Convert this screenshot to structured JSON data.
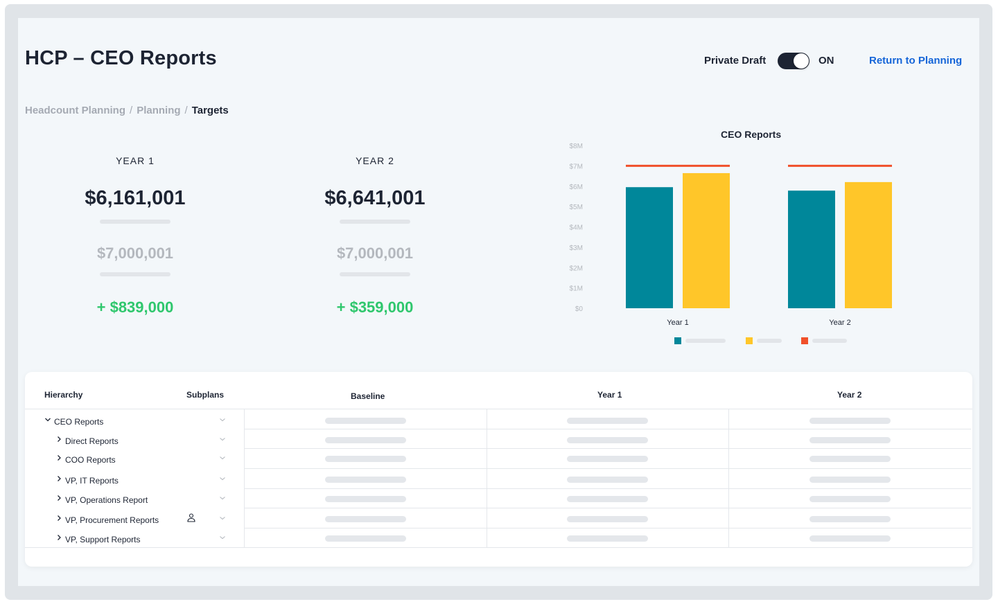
{
  "header": {
    "title": "HCP – CEO Reports",
    "private_draft_label": "Private Draft",
    "toggle_state": "ON",
    "return_link": "Return to Planning"
  },
  "breadcrumb": {
    "items": [
      "Headcount Planning",
      "Planning"
    ],
    "separator": "/",
    "current": "Targets"
  },
  "summary": [
    {
      "title": "YEAR 1",
      "value": "$6,161,001",
      "target": "$7,000,001",
      "diff": "+ $839,000"
    },
    {
      "title": "YEAR 2",
      "value": "$6,641,001",
      "target": "$7,000,001",
      "diff": "+ $359,000"
    }
  ],
  "colors": {
    "teal": "#00879a",
    "yellow": "#ffc629",
    "red": "#f0502a",
    "green": "#2fc76d",
    "link": "#1565d8"
  },
  "chart_data": {
    "type": "bar",
    "title": "CEO Reports",
    "categories": [
      "Year 1",
      "Year 2"
    ],
    "series": [
      {
        "values": [
          5.95,
          5.78
        ],
        "color": "#00879a"
      },
      {
        "values": [
          6.64,
          6.2
        ],
        "color": "#ffc629"
      }
    ],
    "target_lines": {
      "values": [
        7.0,
        7.0
      ],
      "color": "#f0502a"
    },
    "y_ticks": [
      "$0",
      "$1M",
      "$2M",
      "$3M",
      "$4M",
      "$5M",
      "$6M",
      "$7M",
      "$8M"
    ],
    "ylim": [
      0,
      8
    ],
    "grid": false,
    "legend": "bottom"
  },
  "table": {
    "headers": {
      "hierarchy": "Hierarchy",
      "subplans": "Subplans",
      "baseline": "Baseline",
      "year1": "Year 1",
      "year2": "Year 2"
    },
    "rows": [
      {
        "label": "CEO Reports",
        "expanded": true,
        "level": 0,
        "icon": ""
      },
      {
        "label": "Direct Reports",
        "expanded": false,
        "level": 1,
        "icon": ""
      },
      {
        "label": "COO Reports",
        "expanded": false,
        "level": 1,
        "icon": ""
      },
      {
        "label": "VP, IT Reports",
        "expanded": false,
        "level": 1,
        "icon": ""
      },
      {
        "label": "VP, Operations Report",
        "expanded": false,
        "level": 1,
        "icon": ""
      },
      {
        "label": "VP, Procurement Reports",
        "expanded": false,
        "level": 1,
        "icon": "person-icon"
      },
      {
        "label": "VP, Support Reports",
        "expanded": false,
        "level": 1,
        "icon": ""
      }
    ]
  }
}
